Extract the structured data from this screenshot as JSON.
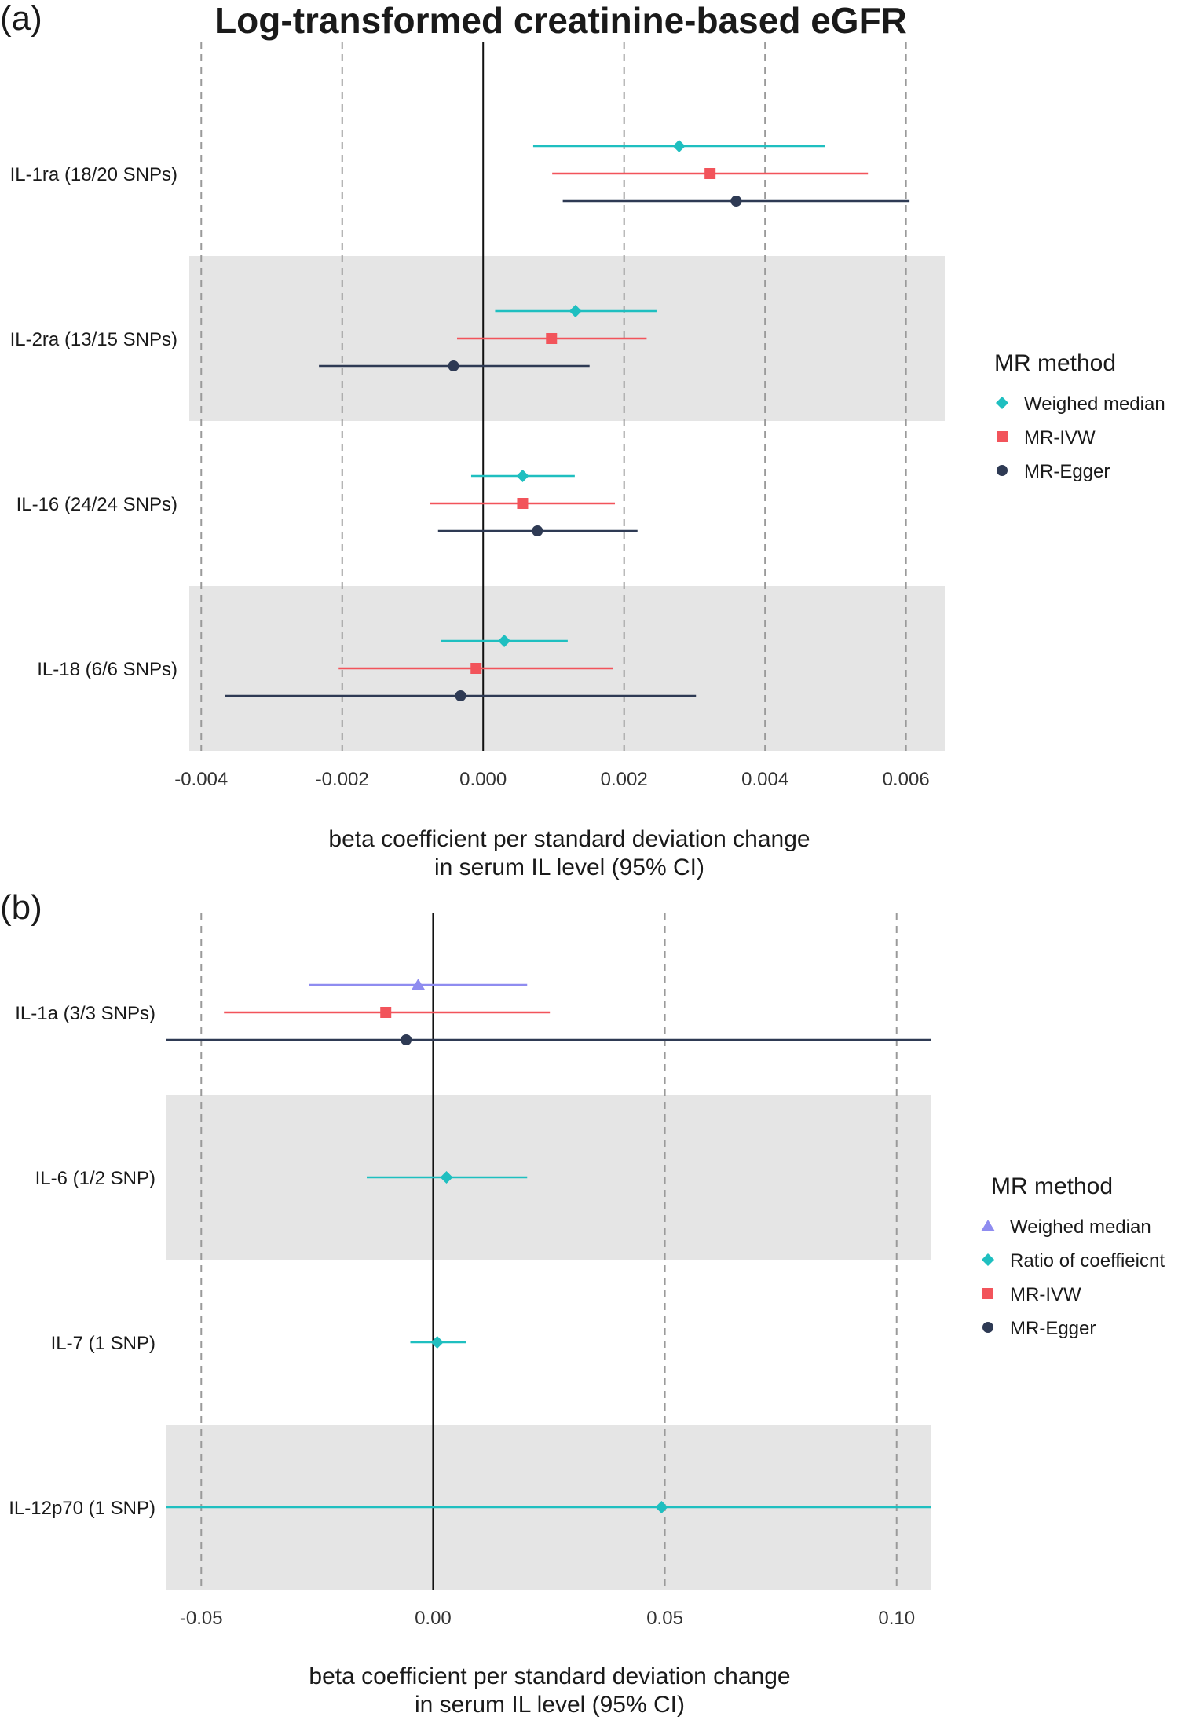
{
  "colors": {
    "teal": "#1fbfc0",
    "red": "#f2545b",
    "navy": "#2e3a54",
    "lavender": "#8f8cf0",
    "band": "#e5e5e5"
  },
  "chart_data": [
    {
      "type": "forest",
      "panel_label": "(a)",
      "title": "Log-transformed creatinine-based eGFR",
      "xlabel_line1": "beta coefficient per standard deviation change",
      "xlabel_line2": "in serum IL level (95% CI)",
      "xlim": [
        -0.00417,
        0.00655
      ],
      "ticks": [
        -0.004,
        -0.002,
        0.0,
        0.002,
        0.004,
        0.006
      ],
      "tick_labels": [
        "-0.004",
        "-0.002",
        "0.000",
        "0.002",
        "0.004",
        "0.006"
      ],
      "legend_title": "MR method",
      "legend_placement": "right",
      "methods": [
        {
          "name": "Weighed median",
          "color": "#1fbfc0",
          "shape": "diamond"
        },
        {
          "name": "MR-IVW",
          "color": "#f2545b",
          "shape": "square"
        },
        {
          "name": "MR-Egger",
          "color": "#2e3a54",
          "shape": "circle"
        }
      ],
      "rows": [
        {
          "label": "IL-1ra (18/20 SNPs)",
          "shaded": false,
          "estimates": [
            {
              "method": "Weighed median",
              "est": 0.00278,
              "lo": 0.00071,
              "hi": 0.00485
            },
            {
              "method": "MR-IVW",
              "est": 0.00322,
              "lo": 0.00098,
              "hi": 0.00546
            },
            {
              "method": "MR-Egger",
              "est": 0.00359,
              "lo": 0.00113,
              "hi": 0.00605
            }
          ]
        },
        {
          "label": "IL-2ra (13/15 SNPs)",
          "shaded": true,
          "estimates": [
            {
              "method": "Weighed median",
              "est": 0.00131,
              "lo": 0.00017,
              "hi": 0.00246
            },
            {
              "method": "MR-IVW",
              "est": 0.00097,
              "lo": -0.00037,
              "hi": 0.00232
            },
            {
              "method": "MR-Egger",
              "est": -0.00042,
              "lo": -0.00233,
              "hi": 0.00151
            }
          ]
        },
        {
          "label": "IL-16 (24/24 SNPs)",
          "shaded": false,
          "estimates": [
            {
              "method": "Weighed median",
              "est": 0.00056,
              "lo": -0.00017,
              "hi": 0.0013
            },
            {
              "method": "MR-IVW",
              "est": 0.00056,
              "lo": -0.00075,
              "hi": 0.00187
            },
            {
              "method": "MR-Egger",
              "est": 0.00077,
              "lo": -0.00064,
              "hi": 0.00219
            }
          ]
        },
        {
          "label": "IL-18 (6/6 SNPs)",
          "shaded": true,
          "estimates": [
            {
              "method": "Weighed median",
              "est": 0.0003,
              "lo": -0.0006,
              "hi": 0.0012
            },
            {
              "method": "MR-IVW",
              "est": -0.0001,
              "lo": -0.00205,
              "hi": 0.00184
            },
            {
              "method": "MR-Egger",
              "est": -0.00032,
              "lo": -0.00366,
              "hi": 0.00302
            }
          ]
        }
      ]
    },
    {
      "type": "forest",
      "panel_label": "(b)",
      "title": "",
      "xlabel_line1": "beta coefficient per standard deviation change",
      "xlabel_line2": "in serum IL level (95% CI)",
      "xlim": [
        -0.0575,
        0.1075
      ],
      "ticks": [
        -0.05,
        0.0,
        0.05,
        0.1
      ],
      "tick_labels": [
        "-0.05",
        "0.00",
        "0.05",
        "0.10"
      ],
      "legend_title": "MR method",
      "legend_placement": "right",
      "methods": [
        {
          "name": "Weighed median",
          "color": "#8f8cf0",
          "shape": "triangle"
        },
        {
          "name": "Ratio of coeffieicnt",
          "color": "#1fbfc0",
          "shape": "diamond"
        },
        {
          "name": "MR-IVW",
          "color": "#f2545b",
          "shape": "square"
        },
        {
          "name": "MR-Egger",
          "color": "#2e3a54",
          "shape": "circle"
        }
      ],
      "rows": [
        {
          "label": "IL-1a (3/3 SNPs)",
          "shaded": false,
          "estimates": [
            {
              "method": "Weighed median",
              "est": -0.0032,
              "lo": -0.0268,
              "hi": 0.0203
            },
            {
              "method": "MR-IVW",
              "est": -0.0102,
              "lo": -0.0451,
              "hi": 0.0252
            },
            {
              "method": "MR-Egger",
              "est": -0.0058,
              "lo": -0.0575,
              "hi": 0.1075
            }
          ]
        },
        {
          "label": "IL-6 (1/2 SNP)",
          "shaded": true,
          "estimates": [
            {
              "method": "Ratio of coeffieicnt",
              "est": 0.0029,
              "lo": -0.0143,
              "hi": 0.0203
            }
          ]
        },
        {
          "label": "IL-7 (1 SNP)",
          "shaded": false,
          "estimates": [
            {
              "method": "Ratio of coeffieicnt",
              "est": 0.0009,
              "lo": -0.0049,
              "hi": 0.0072
            }
          ]
        },
        {
          "label": "IL-12p70 (1 SNP)",
          "shaded": true,
          "estimates": [
            {
              "method": "Ratio of coeffieicnt",
              "est": 0.0493,
              "lo": -0.0575,
              "hi": 0.1075
            }
          ]
        }
      ]
    }
  ]
}
